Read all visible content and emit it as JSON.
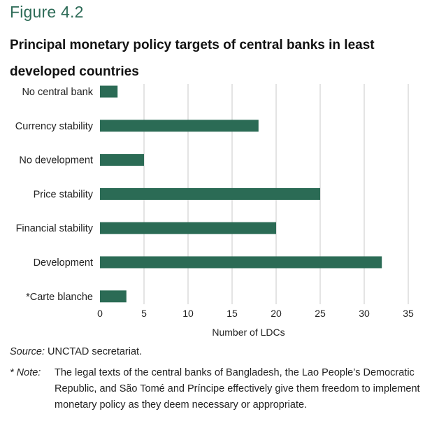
{
  "figure": {
    "label": "Figure 4.2",
    "title": "Principal monetary policy targets of central banks in least developed countries"
  },
  "source": {
    "label": "Source:",
    "text": "UNCTAD secretariat."
  },
  "note": {
    "label": "* Note:",
    "text": "The legal texts of the central banks of Bangladesh, the Lao People’s Democratic Republic, and São Tomé and Príncipe effectively give them freedom to implement monetary policy as they deem necessary or appropriate."
  },
  "colors": {
    "bar": "#2b6b55",
    "grid": "#c8c8c8",
    "heading": "#2d6b57"
  },
  "chart_data": {
    "type": "bar",
    "orientation": "horizontal",
    "categories": [
      "No central bank",
      "Currency stability",
      "No development",
      "Price stability",
      "Financial stability",
      "Development",
      "*Carte blanche"
    ],
    "values": [
      2,
      18,
      5,
      25,
      20,
      32,
      3
    ],
    "xlabel": "Number  of LDCs",
    "ylabel": "",
    "xlim": [
      0,
      35
    ],
    "xticks": [
      0,
      5,
      10,
      15,
      20,
      25,
      30,
      35
    ],
    "grid": "vertical"
  }
}
